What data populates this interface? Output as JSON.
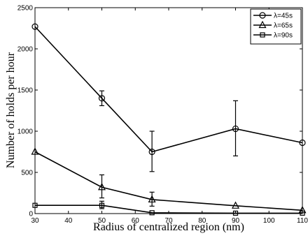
{
  "chart_data": {
    "type": "line",
    "title": "",
    "xlabel": "Radius of centralized region (nm)",
    "ylabel": "Number of holds per hour",
    "xlim": [
      30,
      110
    ],
    "ylim": [
      0,
      2500
    ],
    "xticks": [
      "30",
      "40",
      "50",
      "60",
      "70",
      "80",
      "90",
      "100",
      "110"
    ],
    "yticks": [
      "0",
      "500",
      "1000",
      "1500",
      "2000",
      "2500"
    ],
    "grid": false,
    "legend_position": "top-right",
    "x": [
      30,
      50,
      65,
      90,
      110
    ],
    "series": [
      {
        "name": "λ=45s",
        "marker": "circle",
        "values": [
          2270,
          1400,
          750,
          1030,
          860
        ],
        "err_low": [
          null,
          1310,
          510,
          700,
          null
        ],
        "err_high": [
          null,
          1490,
          1000,
          1370,
          null
        ]
      },
      {
        "name": "λ=65s",
        "marker": "triangle",
        "values": [
          750,
          320,
          170,
          95,
          40
        ],
        "err_low": [
          null,
          190,
          90,
          null,
          null
        ],
        "err_high": [
          null,
          470,
          260,
          null,
          null
        ]
      },
      {
        "name": "λ=90s",
        "marker": "square",
        "values": [
          100,
          100,
          10,
          5,
          5
        ],
        "err_low": [
          null,
          60,
          null,
          null,
          null
        ],
        "err_high": [
          null,
          150,
          null,
          null,
          null
        ]
      }
    ]
  }
}
